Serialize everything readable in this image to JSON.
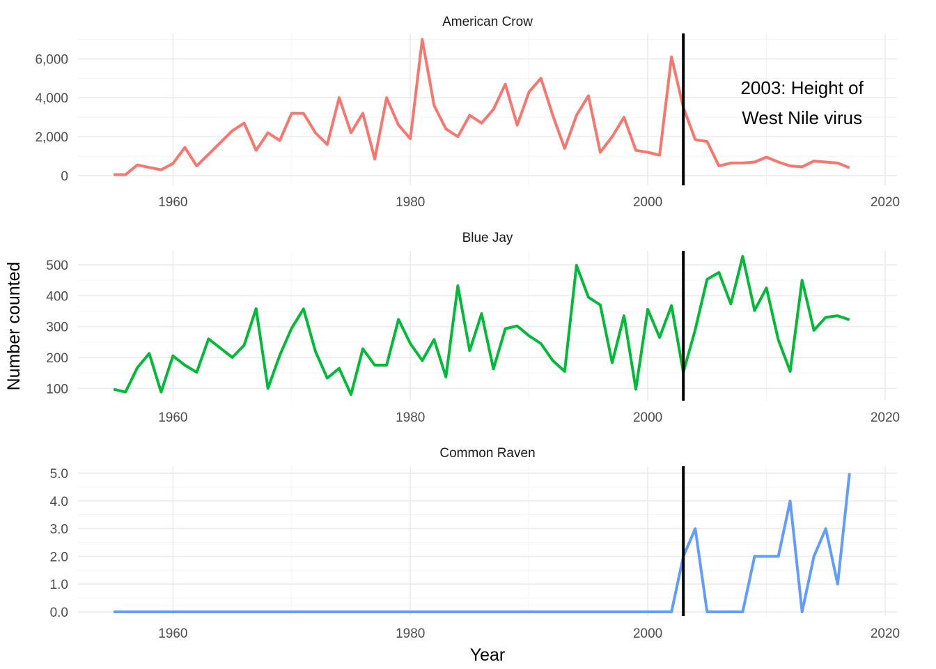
{
  "chart_data": {
    "type": "line",
    "xlabel": "Year",
    "ylabel": "Number counted",
    "x_ticks": [
      "1960",
      "1980",
      "2000",
      "2020"
    ],
    "x_tick_values": [
      1960,
      1980,
      2000,
      2020
    ],
    "xlim": [
      1952,
      2021
    ],
    "grid": true,
    "vline_x": 2003,
    "vline_color": "#000000",
    "annotation": {
      "lines": [
        "2003: Height of",
        "West Nile virus"
      ],
      "x": 2013,
      "panel": 0
    },
    "panels": [
      {
        "title": "American Crow",
        "color": "#F8766D",
        "ylim": [
          -500,
          7300
        ],
        "y_ticks": [
          0,
          2000,
          4000,
          6000
        ],
        "y_tick_labels": [
          "0",
          "2,000",
          "4,000",
          "6,000"
        ],
        "x": [
          1955,
          1956,
          1957,
          1958,
          1959,
          1960,
          1961,
          1962,
          1963,
          1964,
          1965,
          1966,
          1967,
          1968,
          1969,
          1970,
          1971,
          1972,
          1973,
          1974,
          1975,
          1976,
          1977,
          1978,
          1979,
          1980,
          1981,
          1982,
          1983,
          1984,
          1985,
          1986,
          1987,
          1988,
          1989,
          1990,
          1991,
          1992,
          1993,
          1994,
          1995,
          1996,
          1997,
          1998,
          1999,
          2000,
          2001,
          2002,
          2003,
          2004,
          2005,
          2006,
          2007,
          2008,
          2009,
          2010,
          2011,
          2012,
          2013,
          2014,
          2015,
          2016,
          2017
        ],
        "values": [
          50,
          50,
          550,
          420,
          300,
          620,
          1450,
          500,
          1100,
          1700,
          2300,
          2700,
          1300,
          2200,
          1800,
          3200,
          3200,
          2200,
          1600,
          4000,
          2200,
          3200,
          850,
          4000,
          2600,
          1900,
          7000,
          3600,
          2400,
          2000,
          3100,
          2700,
          3400,
          4700,
          2600,
          4300,
          5000,
          3100,
          1400,
          3100,
          4100,
          1200,
          2000,
          3000,
          1300,
          1200,
          1050,
          6100,
          3500,
          1850,
          1750,
          500,
          650,
          650,
          700,
          950,
          700,
          500,
          450,
          750,
          700,
          650,
          400
        ]
      },
      {
        "title": "Blue Jay",
        "color": "#00BA38",
        "ylim": [
          60,
          545
        ],
        "y_ticks": [
          100,
          200,
          300,
          400,
          500
        ],
        "y_tick_labels": [
          "100",
          "200",
          "300",
          "400",
          "500"
        ],
        "x": [
          1955,
          1956,
          1957,
          1958,
          1959,
          1960,
          1961,
          1962,
          1963,
          1964,
          1965,
          1966,
          1967,
          1968,
          1969,
          1970,
          1971,
          1972,
          1973,
          1974,
          1975,
          1976,
          1977,
          1978,
          1979,
          1980,
          1981,
          1982,
          1983,
          1984,
          1985,
          1986,
          1987,
          1988,
          1989,
          1990,
          1991,
          1992,
          1993,
          1994,
          1995,
          1996,
          1997,
          1998,
          1999,
          2000,
          2001,
          2002,
          2003,
          2004,
          2005,
          2006,
          2007,
          2008,
          2009,
          2010,
          2011,
          2012,
          2013,
          2014,
          2015,
          2016,
          2017
        ],
        "values": [
          97,
          88,
          167,
          213,
          88,
          205,
          175,
          152,
          260,
          230,
          200,
          240,
          358,
          100,
          207,
          295,
          357,
          220,
          133,
          165,
          80,
          228,
          175,
          175,
          323,
          245,
          190,
          258,
          137,
          432,
          222,
          342,
          163,
          293,
          302,
          270,
          245,
          190,
          155,
          498,
          395,
          370,
          183,
          335,
          97,
          356,
          265,
          368,
          152,
          290,
          453,
          475,
          373,
          527,
          352,
          425,
          257,
          155,
          450,
          288,
          330,
          335,
          322
        ]
      },
      {
        "title": "Common Raven",
        "color": "#619CFF",
        "ylim": [
          -0.15,
          5.25
        ],
        "y_ticks": [
          0,
          1,
          2,
          3,
          4,
          5
        ],
        "y_tick_labels": [
          "0.0",
          "1.0",
          "2.0",
          "3.0",
          "4.0",
          "5.0"
        ],
        "x": [
          1955,
          1956,
          1957,
          1958,
          1959,
          1960,
          1961,
          1962,
          1963,
          1964,
          1965,
          1966,
          1967,
          1968,
          1969,
          1970,
          1971,
          1972,
          1973,
          1974,
          1975,
          1976,
          1977,
          1978,
          1979,
          1980,
          1981,
          1982,
          1983,
          1984,
          1985,
          1986,
          1987,
          1988,
          1989,
          1990,
          1991,
          1992,
          1993,
          1994,
          1995,
          1996,
          1997,
          1998,
          1999,
          2000,
          2001,
          2002,
          2003,
          2004,
          2005,
          2006,
          2007,
          2008,
          2009,
          2010,
          2011,
          2012,
          2013,
          2014,
          2015,
          2016,
          2017
        ],
        "values": [
          0,
          0,
          0,
          0,
          0,
          0,
          0,
          0,
          0,
          0,
          0,
          0,
          0,
          0,
          0,
          0,
          0,
          0,
          0,
          0,
          0,
          0,
          0,
          0,
          0,
          0,
          0,
          0,
          0,
          0,
          0,
          0,
          0,
          0,
          0,
          0,
          0,
          0,
          0,
          0,
          0,
          0,
          0,
          0,
          0,
          0,
          0,
          0,
          2,
          3,
          0,
          0,
          0,
          0,
          2,
          2,
          2,
          4,
          0,
          2,
          3,
          1,
          5
        ]
      }
    ]
  }
}
